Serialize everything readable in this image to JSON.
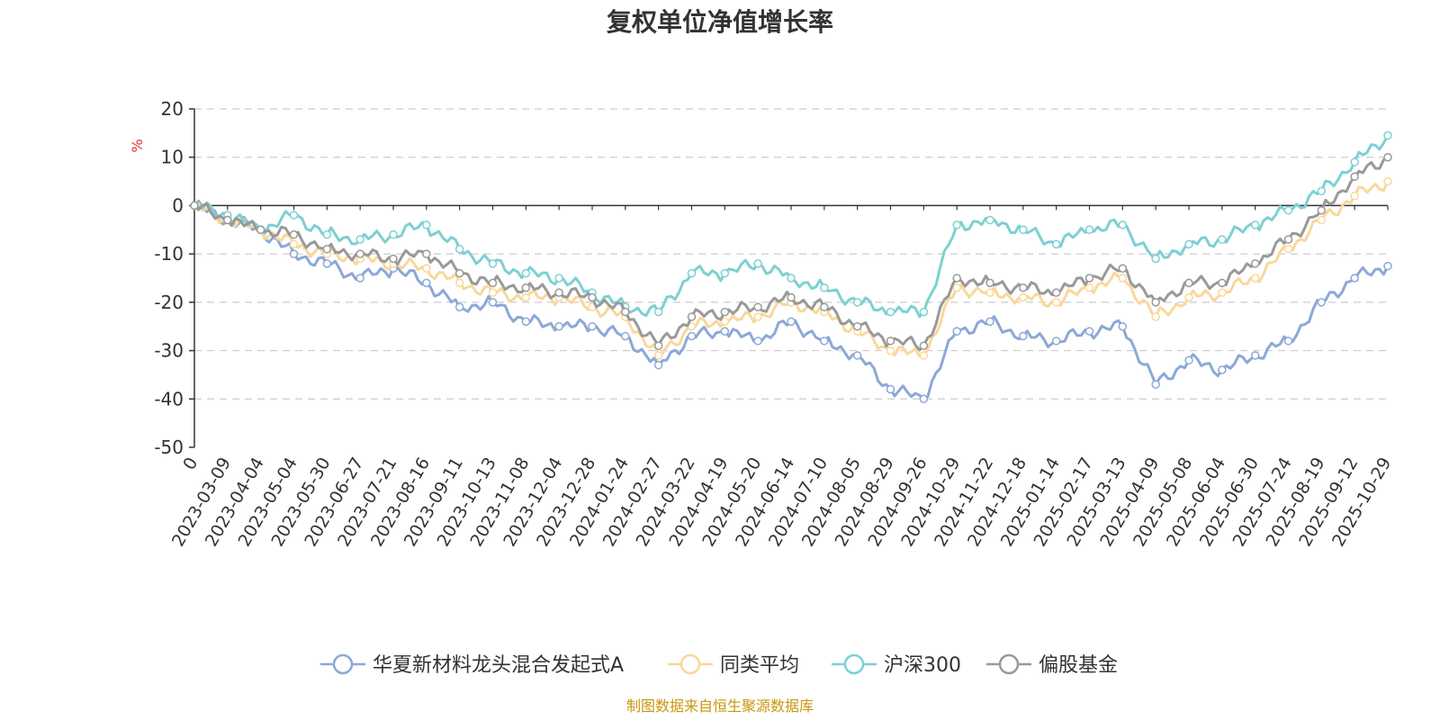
{
  "chart_data": {
    "type": "line",
    "title": "复权单位净值增长率",
    "ylabel": "%",
    "ylim": [
      -50,
      20
    ],
    "yticks": [
      -50,
      -40,
      -30,
      -20,
      -10,
      0,
      10,
      20
    ],
    "grid": true,
    "legend_position": "bottom",
    "x_labels": [
      "0",
      "2023-03-09",
      "2023-04-04",
      "2023-05-04",
      "2023-05-30",
      "2023-06-27",
      "2023-07-21",
      "2023-08-16",
      "2023-09-11",
      "2023-10-13",
      "2023-11-08",
      "2023-12-04",
      "2023-12-28",
      "2024-01-24",
      "2024-02-27",
      "2024-03-22",
      "2024-04-19",
      "2024-05-20",
      "2024-06-14",
      "2024-07-10",
      "2024-08-05",
      "2024-08-29",
      "2024-09-26",
      "2024-10-29",
      "2024-11-22",
      "2024-12-18",
      "2025-01-14",
      "2025-02-17",
      "2025-03-13",
      "2025-04-09",
      "2025-05-08",
      "2025-06-04",
      "2025-06-30",
      "2025-07-24",
      "2025-08-19",
      "2025-09-12",
      "2025-10-29"
    ],
    "series": [
      {
        "name": "华夏新材料龙头混合发起式A",
        "color": "#8ba8d8",
        "values": [
          0,
          -3,
          -5,
          -10,
          -12,
          -15,
          -13,
          -16,
          -21,
          -20,
          -24,
          -25,
          -25,
          -27,
          -33,
          -27,
          -26,
          -28,
          -24,
          -28,
          -31,
          -38,
          -40,
          -26,
          -24,
          -27,
          -28,
          -26,
          -25,
          -37,
          -32,
          -34,
          -31,
          -28,
          -20,
          -15,
          -12.5
        ]
      },
      {
        "name": "同类平均",
        "color": "#f9d89a",
        "values": [
          0,
          -3,
          -5,
          -8,
          -10,
          -11,
          -12,
          -13,
          -16,
          -18,
          -19,
          -19,
          -21,
          -23,
          -31,
          -25,
          -24,
          -23,
          -20,
          -22,
          -26,
          -30,
          -31,
          -17,
          -18,
          -19,
          -20,
          -17,
          -15,
          -23,
          -19,
          -18,
          -15,
          -9,
          -3,
          2,
          5
        ]
      },
      {
        "name": "沪深300",
        "color": "#7dd0d2",
        "values": [
          0,
          -2,
          -5,
          -2,
          -6,
          -7,
          -6,
          -4,
          -9,
          -12,
          -14,
          -15,
          -18,
          -21,
          -22,
          -14,
          -14,
          -12,
          -15,
          -17,
          -20,
          -22,
          -22,
          -4,
          -3,
          -5,
          -8,
          -5,
          -4,
          -11,
          -8,
          -7,
          -4,
          -1,
          3,
          9,
          14.5
        ]
      },
      {
        "name": "偏股基金",
        "color": "#999999",
        "values": [
          0,
          -3,
          -5,
          -6,
          -9,
          -10,
          -11,
          -10,
          -14,
          -16,
          -17,
          -18,
          -19,
          -22,
          -29,
          -23,
          -22,
          -21,
          -19,
          -21,
          -25,
          -28,
          -29,
          -15,
          -16,
          -17,
          -18,
          -15,
          -13,
          -20,
          -16,
          -16,
          -12,
          -7,
          -1,
          6,
          10
        ]
      }
    ]
  },
  "source_note": "制图数据来自恒生聚源数据库"
}
